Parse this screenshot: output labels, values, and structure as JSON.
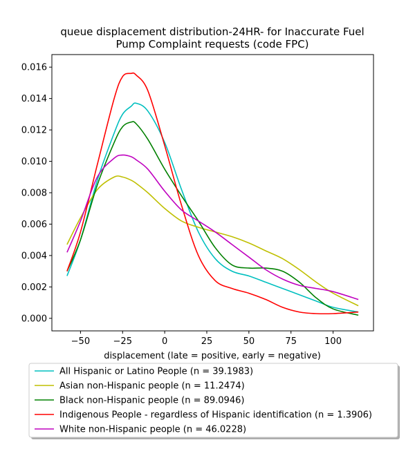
{
  "chart_data": {
    "type": "line",
    "title_lines": [
      "queue displacement distribution-24HR-  for Inaccurate Fuel",
      "Pump Complaint  requests (code FPC)"
    ],
    "xlabel": "displacement (late = positive, early = negative)",
    "ylabel": "",
    "xlim": [
      -67,
      124
    ],
    "ylim": [
      -0.0008,
      0.0168
    ],
    "x_ticks": [
      -50,
      -25,
      0,
      25,
      50,
      75,
      100
    ],
    "x_tick_labels": [
      "−50",
      "−25",
      "0",
      "25",
      "50",
      "75",
      "100"
    ],
    "y_ticks": [
      0,
      0.002,
      0.004,
      0.006,
      0.008,
      0.01,
      0.012,
      0.014,
      0.016
    ],
    "y_tick_labels": [
      "0.000",
      "0.002",
      "0.004",
      "0.006",
      "0.008",
      "0.010",
      "0.012",
      "0.014",
      "0.016"
    ],
    "grid": false,
    "legend_position": "below",
    "x": [
      -58,
      -50,
      -40,
      -30,
      -25,
      -20,
      -17,
      -10,
      0,
      10,
      20,
      30,
      40,
      50,
      60,
      70,
      80,
      90,
      100,
      115
    ],
    "series": [
      {
        "name": "All Hispanic or Latino People (n = 39.1983)",
        "color": "#00bfbf",
        "values": [
          0.0027,
          0.005,
          0.0088,
          0.0118,
          0.013,
          0.0135,
          0.0137,
          0.0132,
          0.0112,
          0.0082,
          0.0055,
          0.0038,
          0.003,
          0.0027,
          0.0023,
          0.0019,
          0.0015,
          0.0011,
          0.0007,
          0.0004
        ]
      },
      {
        "name": "Asian non-Hispanic people (n = 11.2474)",
        "color": "#bfbf00",
        "values": [
          0.0047,
          0.0064,
          0.0082,
          0.009,
          0.009,
          0.0088,
          0.0086,
          0.008,
          0.007,
          0.0062,
          0.0058,
          0.0055,
          0.0052,
          0.0048,
          0.0043,
          0.0038,
          0.0031,
          0.0023,
          0.0016,
          0.0008
        ]
      },
      {
        "name": "Black non-Hispanic people (n = 89.0946)",
        "color": "#008000",
        "values": [
          0.003,
          0.005,
          0.0085,
          0.0112,
          0.0122,
          0.0125,
          0.0124,
          0.0114,
          0.0095,
          0.0078,
          0.0062,
          0.0045,
          0.0034,
          0.0032,
          0.0032,
          0.003,
          0.0023,
          0.0013,
          0.0006,
          0.0002
        ]
      },
      {
        "name": "Indigenous People - regardless of Hispanic identification (n = 1.3906)",
        "color": "#ff0000",
        "values": [
          0.003,
          0.0055,
          0.0098,
          0.014,
          0.0154,
          0.0156,
          0.0155,
          0.0145,
          0.011,
          0.0072,
          0.004,
          0.0024,
          0.0019,
          0.0016,
          0.0012,
          0.0007,
          0.0004,
          0.0003,
          0.0003,
          0.0004
        ]
      },
      {
        "name": "White non-Hispanic people (n = 46.0228)",
        "color": "#bf00bf",
        "values": [
          0.0042,
          0.0062,
          0.009,
          0.0102,
          0.0104,
          0.0103,
          0.0101,
          0.0095,
          0.0081,
          0.0069,
          0.0062,
          0.0055,
          0.0047,
          0.0039,
          0.0031,
          0.0025,
          0.0021,
          0.0019,
          0.0017,
          0.0012
        ]
      }
    ]
  }
}
